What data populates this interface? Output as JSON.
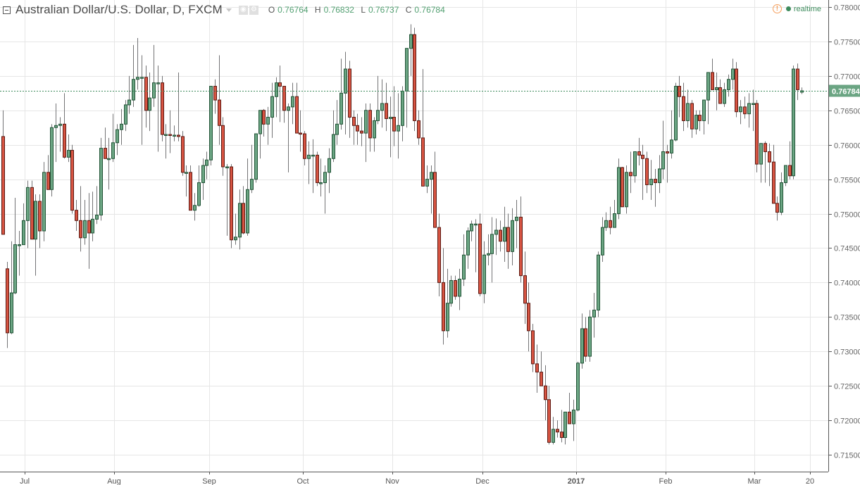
{
  "header": {
    "title": "Australian Dollar/U.S. Dollar, D, FXCM",
    "ohlc": [
      {
        "label": "O",
        "value": "0.76764"
      },
      {
        "label": "H",
        "value": "0.76832"
      },
      {
        "label": "L",
        "value": "0.76737"
      },
      {
        "label": "C",
        "value": "0.76784"
      }
    ],
    "status_text": "realtime",
    "icons": [
      "collapse-icon",
      "dropdown-arrow-icon",
      "eye-icon",
      "gear-icon",
      "warning-icon",
      "realtime-dot-icon"
    ]
  },
  "colors": {
    "up_fill": "#6ba583",
    "up_border": "#225437",
    "down_fill": "#d75442",
    "down_border": "#5b1a13",
    "wick": "#737375",
    "grid": "#e6e6e6",
    "axis": "#555555",
    "last_price_bg": "#6ba583",
    "last_price_line": "#3d8b5c"
  },
  "last_price_label": "0.76784",
  "chart_data": {
    "type": "candlestick",
    "title": "Australian Dollar/U.S. Dollar, D, FXCM",
    "xlabel": "",
    "ylabel": "",
    "ylim": [
      0.7135,
      0.7805
    ],
    "grid": true,
    "y_ticks": [
      "0.78000",
      "0.77500",
      "0.77000",
      "0.76500",
      "0.76000",
      "0.75500",
      "0.75000",
      "0.74500",
      "0.74000",
      "0.73500",
      "0.73000",
      "0.72500",
      "0.72000",
      "0.71500"
    ],
    "x_ticks": [
      {
        "label": "Jul",
        "x": 35
      },
      {
        "label": "Aug",
        "x": 162
      },
      {
        "label": "Sep",
        "x": 297
      },
      {
        "label": "Oct",
        "x": 430
      },
      {
        "label": "Nov",
        "x": 557
      },
      {
        "label": "Dec",
        "x": 685
      },
      {
        "label": "2017",
        "x": 818
      },
      {
        "label": "Feb",
        "x": 945
      },
      {
        "label": "Mar",
        "x": 1071
      },
      {
        "label": "20",
        "x": 1150
      }
    ],
    "last_price": 0.76784,
    "candles": [
      [
        0.7612,
        0.765,
        0.75,
        0.747
      ],
      [
        0.742,
        0.743,
        0.7305,
        0.7327
      ],
      [
        0.7327,
        0.746,
        0.7325,
        0.7385
      ],
      [
        0.7385,
        0.7523,
        0.7383,
        0.7455
      ],
      [
        0.7455,
        0.7475,
        0.741,
        0.7455
      ],
      [
        0.7455,
        0.7515,
        0.7455,
        0.749
      ],
      [
        0.749,
        0.7548,
        0.745,
        0.7538
      ],
      [
        0.7538,
        0.7548,
        0.7463,
        0.7463
      ],
      [
        0.7463,
        0.7528,
        0.741,
        0.7518
      ],
      [
        0.7518,
        0.7528,
        0.745,
        0.7475
      ],
      [
        0.7475,
        0.7575,
        0.746,
        0.756
      ],
      [
        0.756,
        0.7585,
        0.7535,
        0.7535
      ],
      [
        0.7535,
        0.763,
        0.7525,
        0.7625
      ],
      [
        0.7625,
        0.766,
        0.7575,
        0.7628
      ],
      [
        0.7628,
        0.764,
        0.759,
        0.763
      ],
      [
        0.763,
        0.7675,
        0.758,
        0.7582
      ],
      [
        0.7582,
        0.7615,
        0.7575,
        0.7592
      ],
      [
        0.7592,
        0.76,
        0.75,
        0.7505
      ],
      [
        0.7505,
        0.752,
        0.7475,
        0.749
      ],
      [
        0.749,
        0.754,
        0.7445,
        0.7465
      ],
      [
        0.7465,
        0.752,
        0.7455,
        0.749
      ],
      [
        0.749,
        0.753,
        0.742,
        0.7472
      ],
      [
        0.7472,
        0.7532,
        0.746,
        0.7492
      ],
      [
        0.7492,
        0.754,
        0.7485,
        0.7498
      ],
      [
        0.7498,
        0.761,
        0.749,
        0.7595
      ],
      [
        0.7595,
        0.7625,
        0.758,
        0.758
      ],
      [
        0.758,
        0.761,
        0.7535,
        0.758
      ],
      [
        0.758,
        0.7645,
        0.7575,
        0.7603
      ],
      [
        0.7603,
        0.763,
        0.7585,
        0.7622
      ],
      [
        0.7622,
        0.7652,
        0.76,
        0.763
      ],
      [
        0.763,
        0.7665,
        0.762,
        0.7658
      ],
      [
        0.7658,
        0.77,
        0.7645,
        0.7665
      ],
      [
        0.7665,
        0.7745,
        0.7655,
        0.7695
      ],
      [
        0.7695,
        0.7755,
        0.768,
        0.7698
      ],
      [
        0.7698,
        0.773,
        0.76,
        0.7698
      ],
      [
        0.7698,
        0.7715,
        0.7625,
        0.765
      ],
      [
        0.765,
        0.7705,
        0.762,
        0.7668
      ],
      [
        0.7668,
        0.7745,
        0.7655,
        0.769
      ],
      [
        0.769,
        0.7715,
        0.759,
        0.769
      ],
      [
        0.769,
        0.77,
        0.7605,
        0.7615
      ],
      [
        0.7615,
        0.763,
        0.758,
        0.7615
      ],
      [
        0.7615,
        0.765,
        0.7588,
        0.7614
      ],
      [
        0.7614,
        0.7628,
        0.7605,
        0.7614
      ],
      [
        0.7614,
        0.7705,
        0.7605,
        0.7612
      ],
      [
        0.7612,
        0.762,
        0.7555,
        0.756
      ],
      [
        0.756,
        0.757,
        0.7525,
        0.756
      ],
      [
        0.756,
        0.757,
        0.7505,
        0.7505
      ],
      [
        0.7505,
        0.753,
        0.749,
        0.7512
      ],
      [
        0.7512,
        0.757,
        0.751,
        0.7545
      ],
      [
        0.7545,
        0.758,
        0.752,
        0.757
      ],
      [
        0.757,
        0.759,
        0.755,
        0.7578
      ],
      [
        0.7578,
        0.765,
        0.757,
        0.7685
      ],
      [
        0.7685,
        0.7695,
        0.7645,
        0.7665
      ],
      [
        0.7665,
        0.773,
        0.76,
        0.7628
      ],
      [
        0.7628,
        0.764,
        0.7555,
        0.7568
      ],
      [
        0.7568,
        0.7572,
        0.7468,
        0.7568
      ],
      [
        0.7568,
        0.7572,
        0.745,
        0.7462
      ],
      [
        0.7462,
        0.75,
        0.7455,
        0.7466
      ],
      [
        0.7466,
        0.7535,
        0.7448,
        0.7515
      ],
      [
        0.7515,
        0.754,
        0.747,
        0.7472
      ],
      [
        0.7472,
        0.758,
        0.7468,
        0.7535
      ],
      [
        0.7535,
        0.76,
        0.753,
        0.755
      ],
      [
        0.755,
        0.761,
        0.7545,
        0.7616
      ],
      [
        0.7616,
        0.7645,
        0.758,
        0.765
      ],
      [
        0.765,
        0.7652,
        0.7612,
        0.763
      ],
      [
        0.763,
        0.7655,
        0.76,
        0.764
      ],
      [
        0.764,
        0.769,
        0.761,
        0.767
      ],
      [
        0.767,
        0.7698,
        0.764,
        0.769
      ],
      [
        0.769,
        0.7715,
        0.7633,
        0.7685
      ],
      [
        0.7685,
        0.7685,
        0.7632,
        0.765
      ],
      [
        0.765,
        0.766,
        0.756,
        0.7655
      ],
      [
        0.7655,
        0.769,
        0.763,
        0.767
      ],
      [
        0.767,
        0.769,
        0.762,
        0.7617
      ],
      [
        0.7617,
        0.765,
        0.759,
        0.7616
      ],
      [
        0.7616,
        0.762,
        0.757,
        0.758
      ],
      [
        0.758,
        0.7605,
        0.7543,
        0.7585
      ],
      [
        0.7585,
        0.7608,
        0.753,
        0.7585
      ],
      [
        0.7585,
        0.759,
        0.754,
        0.7545
      ],
      [
        0.7545,
        0.758,
        0.7525,
        0.7545
      ],
      [
        0.7545,
        0.757,
        0.75,
        0.756
      ],
      [
        0.756,
        0.7595,
        0.753,
        0.758
      ],
      [
        0.758,
        0.765,
        0.7575,
        0.7615
      ],
      [
        0.7615,
        0.7665,
        0.76,
        0.763
      ],
      [
        0.763,
        0.7725,
        0.7622,
        0.7675
      ],
      [
        0.7675,
        0.7735,
        0.7615,
        0.771
      ],
      [
        0.771,
        0.7722,
        0.761,
        0.764
      ],
      [
        0.764,
        0.765,
        0.76,
        0.7628
      ],
      [
        0.7628,
        0.7645,
        0.76,
        0.762
      ],
      [
        0.762,
        0.764,
        0.7598,
        0.7617
      ],
      [
        0.7617,
        0.766,
        0.7575,
        0.765
      ],
      [
        0.765,
        0.766,
        0.759,
        0.761
      ],
      [
        0.761,
        0.764,
        0.759,
        0.7635
      ],
      [
        0.7635,
        0.77,
        0.763,
        0.765
      ],
      [
        0.765,
        0.7695,
        0.7625,
        0.766
      ],
      [
        0.766,
        0.769,
        0.762,
        0.7638
      ],
      [
        0.7638,
        0.767,
        0.7582,
        0.764
      ],
      [
        0.764,
        0.7685,
        0.7598,
        0.762
      ],
      [
        0.762,
        0.7675,
        0.758,
        0.7628
      ],
      [
        0.7628,
        0.7685,
        0.7605,
        0.7678
      ],
      [
        0.7678,
        0.7715,
        0.7625,
        0.774
      ],
      [
        0.774,
        0.7775,
        0.77,
        0.776
      ],
      [
        0.776,
        0.777,
        0.762,
        0.7635
      ],
      [
        0.7635,
        0.765,
        0.76,
        0.761
      ],
      [
        0.761,
        0.771,
        0.758,
        0.754
      ],
      [
        0.754,
        0.757,
        0.753,
        0.755
      ],
      [
        0.755,
        0.757,
        0.75,
        0.756
      ],
      [
        0.756,
        0.759,
        0.748,
        0.748
      ],
      [
        0.748,
        0.75,
        0.738,
        0.74
      ],
      [
        0.74,
        0.745,
        0.731,
        0.733
      ],
      [
        0.733,
        0.742,
        0.732,
        0.737
      ],
      [
        0.737,
        0.741,
        0.7365,
        0.7403
      ],
      [
        0.7403,
        0.741,
        0.7375,
        0.738
      ],
      [
        0.738,
        0.742,
        0.736,
        0.7405
      ],
      [
        0.7405,
        0.747,
        0.7395,
        0.744
      ],
      [
        0.744,
        0.748,
        0.742,
        0.7475
      ],
      [
        0.7475,
        0.749,
        0.746,
        0.7485
      ],
      [
        0.7485,
        0.7492,
        0.7415,
        0.7485
      ],
      [
        0.7485,
        0.75,
        0.738,
        0.7384
      ],
      [
        0.7384,
        0.746,
        0.737,
        0.744
      ],
      [
        0.744,
        0.747,
        0.7425,
        0.7442
      ],
      [
        0.7442,
        0.7495,
        0.74,
        0.747
      ],
      [
        0.747,
        0.7493,
        0.744,
        0.7476
      ],
      [
        0.7476,
        0.749,
        0.7445,
        0.746
      ],
      [
        0.746,
        0.751,
        0.743,
        0.748
      ],
      [
        0.748,
        0.75,
        0.742,
        0.7445
      ],
      [
        0.7445,
        0.7508,
        0.7425,
        0.749
      ],
      [
        0.749,
        0.752,
        0.745,
        0.7495
      ],
      [
        0.7495,
        0.7525,
        0.74,
        0.741
      ],
      [
        0.741,
        0.7445,
        0.734,
        0.737
      ],
      [
        0.737,
        0.74,
        0.73,
        0.733
      ],
      [
        0.733,
        0.734,
        0.727,
        0.7282
      ],
      [
        0.7282,
        0.731,
        0.724,
        0.727
      ],
      [
        0.727,
        0.73,
        0.725,
        0.725
      ],
      [
        0.725,
        0.728,
        0.72,
        0.723
      ],
      [
        0.723,
        0.725,
        0.7165,
        0.7168
      ],
      [
        0.7168,
        0.7205,
        0.7165,
        0.7187
      ],
      [
        0.7187,
        0.72,
        0.7175,
        0.7183
      ],
      [
        0.7183,
        0.7215,
        0.7168,
        0.7175
      ],
      [
        0.7175,
        0.721,
        0.7165,
        0.7212
      ],
      [
        0.7212,
        0.724,
        0.7195,
        0.7195
      ],
      [
        0.7195,
        0.723,
        0.717,
        0.7215
      ],
      [
        0.7215,
        0.7285,
        0.7213,
        0.7283
      ],
      [
        0.7283,
        0.7355,
        0.7275,
        0.7333
      ],
      [
        0.7333,
        0.735,
        0.7285,
        0.7293
      ],
      [
        0.7293,
        0.736,
        0.7285,
        0.735
      ],
      [
        0.735,
        0.7385,
        0.732,
        0.736
      ],
      [
        0.736,
        0.7445,
        0.735,
        0.744
      ],
      [
        0.744,
        0.7495,
        0.743,
        0.748
      ],
      [
        0.748,
        0.7502,
        0.7475,
        0.749
      ],
      [
        0.749,
        0.751,
        0.747,
        0.748
      ],
      [
        0.748,
        0.752,
        0.748,
        0.75
      ],
      [
        0.75,
        0.758,
        0.7492,
        0.7567
      ],
      [
        0.7567,
        0.7568,
        0.751,
        0.751
      ],
      [
        0.751,
        0.757,
        0.75,
        0.756
      ],
      [
        0.756,
        0.759,
        0.753,
        0.7555
      ],
      [
        0.7555,
        0.759,
        0.7545,
        0.759
      ],
      [
        0.759,
        0.761,
        0.757,
        0.7585
      ],
      [
        0.7585,
        0.76,
        0.752,
        0.758
      ],
      [
        0.758,
        0.759,
        0.753,
        0.7542
      ],
      [
        0.7542,
        0.7578,
        0.752,
        0.755
      ],
      [
        0.755,
        0.7565,
        0.751,
        0.7545
      ],
      [
        0.7545,
        0.7585,
        0.753,
        0.7565
      ],
      [
        0.7565,
        0.7635,
        0.755,
        0.759
      ],
      [
        0.759,
        0.76,
        0.7545,
        0.7588
      ],
      [
        0.7588,
        0.765,
        0.758,
        0.7607
      ],
      [
        0.7607,
        0.769,
        0.7605,
        0.7685
      ],
      [
        0.7685,
        0.77,
        0.764,
        0.767
      ],
      [
        0.767,
        0.769,
        0.762,
        0.7635
      ],
      [
        0.7635,
        0.768,
        0.7625,
        0.766
      ],
      [
        0.766,
        0.7665,
        0.761,
        0.7623
      ],
      [
        0.7623,
        0.765,
        0.7615,
        0.7643
      ],
      [
        0.7643,
        0.765,
        0.762,
        0.7635
      ],
      [
        0.7635,
        0.766,
        0.7615,
        0.7665
      ],
      [
        0.7665,
        0.769,
        0.763,
        0.7705
      ],
      [
        0.7705,
        0.7725,
        0.769,
        0.768
      ],
      [
        0.768,
        0.7705,
        0.765,
        0.7683
      ],
      [
        0.7683,
        0.7695,
        0.766,
        0.766
      ],
      [
        0.766,
        0.769,
        0.7655,
        0.768
      ],
      [
        0.768,
        0.7702,
        0.767,
        0.7695
      ],
      [
        0.7695,
        0.7725,
        0.768,
        0.771
      ],
      [
        0.771,
        0.772,
        0.764,
        0.7648
      ],
      [
        0.7648,
        0.7665,
        0.763,
        0.7655
      ],
      [
        0.7655,
        0.767,
        0.7638,
        0.7645
      ],
      [
        0.7645,
        0.7675,
        0.7625,
        0.766
      ],
      [
        0.766,
        0.768,
        0.762,
        0.766
      ],
      [
        0.766,
        0.7665,
        0.756,
        0.7572
      ],
      [
        0.7572,
        0.76,
        0.7545,
        0.7602
      ],
      [
        0.7602,
        0.7605,
        0.7545,
        0.759
      ],
      [
        0.759,
        0.7602,
        0.754,
        0.7575
      ],
      [
        0.7575,
        0.76,
        0.752,
        0.7515
      ],
      [
        0.7515,
        0.7525,
        0.749,
        0.7502
      ],
      [
        0.7502,
        0.756,
        0.7498,
        0.7545
      ],
      [
        0.7545,
        0.757,
        0.754,
        0.757
      ],
      [
        0.757,
        0.7605,
        0.755,
        0.7555
      ],
      [
        0.7555,
        0.7715,
        0.755,
        0.771
      ],
      [
        0.771,
        0.7718,
        0.7665,
        0.768
      ],
      [
        0.76764,
        0.76832,
        0.76737,
        0.76784
      ]
    ]
  }
}
